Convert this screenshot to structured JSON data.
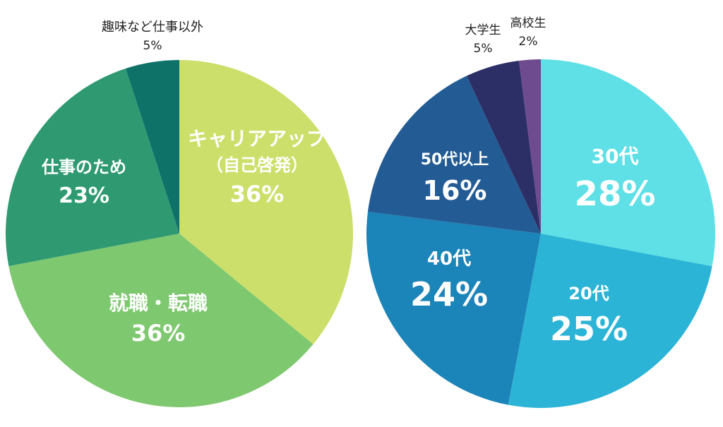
{
  "chart_data": [
    {
      "type": "pie",
      "title": "",
      "start": "12 o'clock, clockwise",
      "slices": [
        {
          "label": "キャリアアップ",
          "sublabel": "（自己啓発）",
          "value": 36,
          "value_label": "36%",
          "color": "#cddf6b",
          "label_placement": "inside"
        },
        {
          "label": "就職・転職",
          "value": 36,
          "value_label": "36%",
          "color": "#7ec86f",
          "label_placement": "inside"
        },
        {
          "label": "仕事のため",
          "value": 23,
          "value_label": "23%",
          "color": "#2f9a72",
          "label_placement": "inside"
        },
        {
          "label": "趣味など仕事以外",
          "value": 5,
          "value_label": "5%",
          "color": "#0e7268",
          "label_placement": "outside"
        }
      ]
    },
    {
      "type": "pie",
      "title": "",
      "start": "12 o'clock, clockwise",
      "slices": [
        {
          "label": "30代",
          "value": 28,
          "value_label": "28%",
          "color": "#5ee0e6",
          "label_placement": "inside"
        },
        {
          "label": "20代",
          "value": 25,
          "value_label": "25%",
          "color": "#2bb4d6",
          "label_placement": "inside"
        },
        {
          "label": "40代",
          "value": 24,
          "value_label": "24%",
          "color": "#1b84b8",
          "label_placement": "inside"
        },
        {
          "label": "50代以上",
          "value": 16,
          "value_label": "16%",
          "color": "#235b94",
          "label_placement": "inside"
        },
        {
          "label": "大学生",
          "value": 5,
          "value_label": "5%",
          "color": "#2c2f66",
          "label_placement": "outside"
        },
        {
          "label": "高校生",
          "value": 2,
          "value_label": "2%",
          "color": "#6e4b8f",
          "label_placement": "outside"
        }
      ]
    }
  ]
}
